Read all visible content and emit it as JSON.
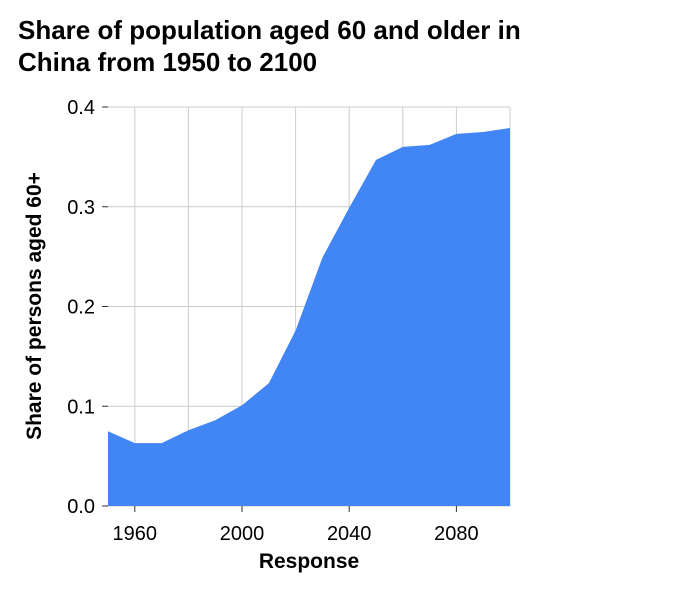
{
  "chart_data": {
    "type": "area",
    "title_lines": [
      "Share of population aged 60 and older in",
      "China from 1950 to 2100"
    ],
    "xlabel": "Response",
    "ylabel": "Share of persons aged 60+",
    "xlim": [
      1950,
      2100
    ],
    "ylim": [
      0,
      0.4
    ],
    "x_ticks": [
      {
        "value": 1960,
        "label": "1960"
      },
      {
        "value": 2000,
        "label": "2000"
      },
      {
        "value": 2040,
        "label": "2040"
      },
      {
        "value": 2080,
        "label": "2080"
      }
    ],
    "y_ticks": [
      {
        "value": 0.0,
        "label": "0.0"
      },
      {
        "value": 0.1,
        "label": "0.1"
      },
      {
        "value": 0.2,
        "label": "0.2"
      },
      {
        "value": 0.3,
        "label": "0.3"
      },
      {
        "value": 0.4,
        "label": "0.4"
      }
    ],
    "grid": true,
    "x_grid_values": [
      1960,
      1980,
      2000,
      2020,
      2040,
      2060,
      2080,
      2100
    ],
    "y_grid_values": [
      0.0,
      0.1,
      0.2,
      0.3,
      0.4
    ],
    "series": [
      {
        "color": "#4285f4",
        "x": [
          1950,
          1960,
          1970,
          1980,
          1990,
          2000,
          2010,
          2020,
          2030,
          2040,
          2050,
          2060,
          2070,
          2080,
          2090,
          2100
        ],
        "y": [
          0.075,
          0.063,
          0.063,
          0.076,
          0.086,
          0.101,
          0.123,
          0.176,
          0.249,
          0.299,
          0.347,
          0.36,
          0.362,
          0.373,
          0.375,
          0.379
        ]
      }
    ]
  }
}
